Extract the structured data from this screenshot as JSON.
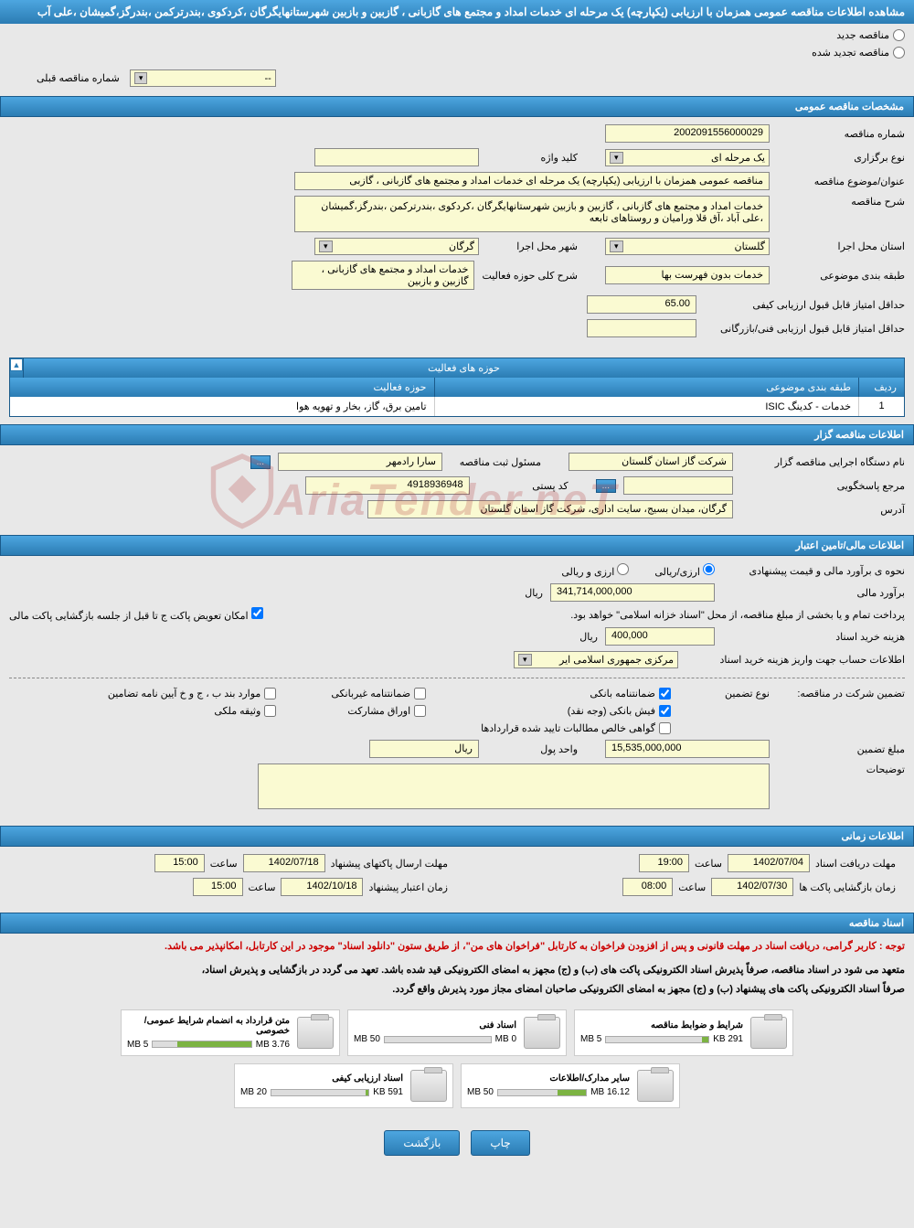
{
  "header": {
    "title": "مشاهده اطلاعات مناقصه عمومی همزمان با ارزیابی (یکپارچه) یک مرحله ای خدمات امداد و مجتمع های گازبانی ، گازبین و بازبین شهرستانهایگرگان ،کردکوی ،بندرترکمن ،بندرگز،گمیشان ،علی آب"
  },
  "radio": {
    "new_label": "مناقصه جدید",
    "renewed_label": "مناقصه تجدید شده"
  },
  "prev_number": {
    "label": "شماره مناقصه قبلی",
    "value": "--"
  },
  "sections": {
    "general": "مشخصات مناقصه عمومی",
    "activity": "حوزه های فعالیت",
    "organizer": "اطلاعات مناقصه گزار",
    "financial": "اطلاعات مالی/تامین اعتبار",
    "timing": "اطلاعات زمانی",
    "documents": "اسناد مناقصه"
  },
  "general": {
    "tender_number": {
      "label": "شماره مناقصه",
      "value": "2002091556000029"
    },
    "type": {
      "label": "نوع برگزاری",
      "value": "یک مرحله ای"
    },
    "keyword": {
      "label": "کلید واژه",
      "value": ""
    },
    "subject": {
      "label": "عنوان/موضوع مناقصه",
      "value": "مناقصه عمومی همزمان با ارزیابی (یکپارچه) یک مرحله ای خدمات امداد و مجتمع های گازبانی ، گازبی"
    },
    "description": {
      "label": "شرح مناقصه",
      "value": "خدمات امداد و مجتمع های گازبانی ، گازبین و بازبین شهرستانهایگرگان ،کردکوی ،بندرترکمن ،بندرگز،گمیشان ،علی آباد ،آق قلا ورامیان و روستاهای تابعه"
    },
    "province": {
      "label": "استان محل اجرا",
      "value": "گلستان"
    },
    "city": {
      "label": "شهر محل اجرا",
      "value": "گرگان"
    },
    "category": {
      "label": "طبقه بندی موضوعی",
      "value": "خدمات بدون فهرست بها"
    },
    "activity_desc": {
      "label": "شرح کلی حوزه فعالیت",
      "value": "خدمات امداد و مجتمع های گازبانی ، گازبین و بازبین"
    },
    "min_quality_score": {
      "label": "حداقل امتیاز قابل قبول ارزیابی کیفی",
      "value": "65.00"
    },
    "min_tech_score": {
      "label": "حداقل امتیاز قابل قبول ارزیابی فنی/بازرگانی",
      "value": ""
    }
  },
  "activity_table": {
    "headers": {
      "row": "ردیف",
      "category": "طبقه بندی موضوعی",
      "area": "حوزه فعالیت"
    },
    "rows": [
      {
        "row": "1",
        "category": "خدمات - کدینگ ISIC",
        "area": "تامین برق، گاز، بخار و تهویه هوا"
      }
    ]
  },
  "organizer": {
    "exec_name": {
      "label": "نام دستگاه اجرایی مناقصه گزار",
      "value": "شرکت گاز استان گلستان"
    },
    "registrar": {
      "label": "مسئول ثبت مناقصه",
      "value": "سارا رادمهر"
    },
    "contact": {
      "label": "مرجع پاسخگویی",
      "value": ""
    },
    "postal": {
      "label": "کد پستی",
      "value": "4918936948"
    },
    "address": {
      "label": "آدرس",
      "value": "گرگان، میدان بسیج، سایت اداری، شرکت گاز استان گلستان"
    }
  },
  "financial": {
    "estimate_type": {
      "label": "نحوه ی برآورد مالی و قیمت پیشنهادی",
      "currency_label": "ارزی/ریالی",
      "rial_label": "ارزی و ریالی"
    },
    "estimate": {
      "label": "برآورد مالی",
      "value": "341,714,000,000",
      "unit": "ریال"
    },
    "payment_note": "پرداخت تمام و یا بخشی از مبلغ مناقصه، از محل \"اسناد خزانه اسلامی\" خواهد بود.",
    "swap_note": "امکان تعویض پاکت ج تا قبل از جلسه بازگشایی پاکت مالی",
    "doc_fee": {
      "label": "هزینه خرید اسناد",
      "value": "400,000",
      "unit": "ریال"
    },
    "account": {
      "label": "اطلاعات حساب جهت واریز هزینه خرید اسناد",
      "value": "مرکزی جمهوری اسلامی ایر"
    },
    "guarantee_label": "تضمین شرکت در مناقصه:",
    "guarantee_type_label": "نوع تضمین",
    "guarantees": {
      "bank": "ضمانتنامه بانکی",
      "nonbank": "ضمانتنامه غیربانکی",
      "cash": "فیش بانکی (وجه نقد)",
      "bonds": "اوراق مشارکت",
      "cases": "موارد بند ب ، ج و خ آیین نامه تضامین",
      "property": "وثیقه ملکی",
      "receivables": "گواهی خالص مطالبات تایید شده قراردادها"
    },
    "guarantee_amount": {
      "label": "مبلغ تضمین",
      "value": "15,535,000,000"
    },
    "currency_unit": {
      "label": "واحد پول",
      "value": "ریال"
    },
    "notes_label": "توضیحات"
  },
  "timing": {
    "receive": {
      "label": "مهلت دریافت اسناد",
      "date": "1402/07/04",
      "time_label": "ساعت",
      "time": "19:00"
    },
    "submit": {
      "label": "مهلت ارسال پاکتهای پیشنهاد",
      "date": "1402/07/18",
      "time_label": "ساعت",
      "time": "15:00"
    },
    "open": {
      "label": "زمان بازگشایی پاکت ها",
      "date": "1402/07/30",
      "time_label": "ساعت",
      "time": "08:00"
    },
    "validity": {
      "label": "زمان اعتبار پیشنهاد",
      "date": "1402/10/18",
      "time_label": "ساعت",
      "time": "15:00"
    }
  },
  "notices": {
    "red": "توجه : کاربر گرامی، دریافت اسناد در مهلت قانونی و پس از افزودن فراخوان به کارتابل \"فراخوان های من\"، از طریق ستون \"دانلود اسناد\" موجود در این کارتابل، امکانپذیر می باشد.",
    "black1": "متعهد می شود در اسناد مناقصه، صرفاً پذیرش اسناد الکترونیکی پاکت های (ب) و (ج) مجهز به امضای الکترونیکی قید شده باشد. تعهد می گردد در بازگشایی و پذیرش اسناد،",
    "black2": "صرفاً اسناد الکترونیکی پاکت های پیشنهاد (ب) و (ج) مجهز به امضای الکترونیکی صاحبان امضای مجاز مورد پذیرش واقع گردد."
  },
  "docs": [
    {
      "title": "شرایط و ضوابط مناقصه",
      "used": "291 KB",
      "total": "5 MB",
      "pct": 6
    },
    {
      "title": "اسناد فنی",
      "used": "0 MB",
      "total": "50 MB",
      "pct": 0
    },
    {
      "title": "متن قرارداد به انضمام شرایط عمومی/خصوصی",
      "used": "3.76 MB",
      "total": "5 MB",
      "pct": 75
    },
    {
      "title": "سایر مدارک/اطلاعات",
      "used": "16.12 MB",
      "total": "50 MB",
      "pct": 32
    },
    {
      "title": "اسناد ارزیابی کیفی",
      "used": "591 KB",
      "total": "20 MB",
      "pct": 3
    }
  ],
  "footer": {
    "print": "چاپ",
    "back": "بازگشت"
  },
  "watermark": "AriaTender.neT",
  "colors": {
    "header_bg": "#2b7cb3",
    "field_bg": "#fafad2",
    "page_bg": "#e8e8e8",
    "notice_red": "#cc0000",
    "bar_green": "#7cb342"
  }
}
